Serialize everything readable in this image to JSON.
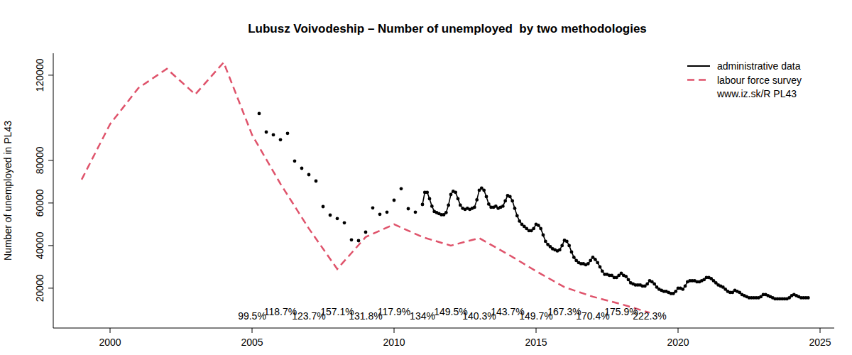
{
  "chart_data": {
    "type": "line",
    "title": "Lubusz Voivodeship – Number of unemployed  by two methodologies",
    "y_label": "Number of unemployed in PL43",
    "source": "www.iz.sk/R PL43",
    "legend": "top-right",
    "xlim": [
      1998,
      2025.5
    ],
    "xticks": [
      2000,
      2005,
      2010,
      2015,
      2020,
      2025
    ],
    "ylim": [
      1300,
      130300
    ],
    "yticks": [
      20000,
      40000,
      60000,
      80000,
      120000
    ],
    "grid": false,
    "series": [
      {
        "name": "administrative data",
        "color": "#000000",
        "type": "line",
        "marker": "circle",
        "line_style": "solid",
        "x": [
          2005.25,
          2005.333,
          2005.5,
          2005.583,
          2005.75,
          2005.833,
          2006.0,
          2006.083,
          2006.25,
          2006.333,
          2006.5,
          2006.583,
          2006.75,
          2006.833,
          2007.0,
          2007.083,
          2007.25,
          2007.333,
          2007.5,
          2007.583,
          2007.75,
          2007.833,
          2008.0,
          2008.083,
          2008.25,
          2008.333,
          2008.5,
          2008.583,
          2008.75,
          2008.833,
          2009.0,
          2009.083,
          2009.25,
          2009.333,
          2009.5,
          2009.583,
          2009.75,
          2009.833,
          2010.0,
          2010.083,
          2010.25,
          2010.333,
          2010.5,
          2010.583,
          2010.75,
          2010.833,
          2011.0,
          2011.083,
          2011.167,
          2011.25,
          2011.333,
          2011.417,
          2011.5,
          2011.583,
          2011.667,
          2011.75,
          2011.833,
          2011.917,
          2012.0,
          2012.083,
          2012.167,
          2012.25,
          2012.333,
          2012.417,
          2012.5,
          2012.583,
          2012.667,
          2012.75,
          2012.833,
          2012.917,
          2013.0,
          2013.083,
          2013.167,
          2013.25,
          2013.333,
          2013.417,
          2013.5,
          2013.583,
          2013.667,
          2013.75,
          2013.833,
          2013.917,
          2014.0,
          2014.083,
          2014.167,
          2014.25,
          2014.333,
          2014.417,
          2014.5,
          2014.583,
          2014.667,
          2014.75,
          2014.833,
          2014.917,
          2015.0,
          2015.083,
          2015.167,
          2015.25,
          2015.333,
          2015.417,
          2015.5,
          2015.583,
          2015.667,
          2015.75,
          2015.833,
          2015.917,
          2016.0,
          2016.083,
          2016.167,
          2016.25,
          2016.333,
          2016.417,
          2016.5,
          2016.583,
          2016.667,
          2016.75,
          2016.833,
          2016.917,
          2017.0,
          2017.083,
          2017.167,
          2017.25,
          2017.333,
          2017.417,
          2017.5,
          2017.583,
          2017.667,
          2017.75,
          2017.833,
          2017.917,
          2018.0,
          2018.083,
          2018.167,
          2018.25,
          2018.333,
          2018.417,
          2018.5,
          2018.583,
          2018.667,
          2018.75,
          2018.833,
          2018.917,
          2019.0,
          2019.083,
          2019.167,
          2019.25,
          2019.333,
          2019.417,
          2019.5,
          2019.583,
          2019.667,
          2019.75,
          2019.833,
          2019.917,
          2020.0,
          2020.083,
          2020.167,
          2020.25,
          2020.333,
          2020.417,
          2020.5,
          2020.583,
          2020.667,
          2020.75,
          2020.833,
          2020.917,
          2021.0,
          2021.083,
          2021.167,
          2021.25,
          2021.333,
          2021.417,
          2021.5,
          2021.583,
          2021.667,
          2021.75,
          2021.833,
          2021.917,
          2022.0,
          2022.083,
          2022.167,
          2022.25,
          2022.333,
          2022.417,
          2022.5,
          2022.583,
          2022.667,
          2022.75,
          2022.833,
          2022.917,
          2023.0,
          2023.083,
          2023.167,
          2023.25,
          2023.333,
          2023.417,
          2023.5,
          2023.583,
          2023.667,
          2023.75,
          2023.833,
          2023.917,
          2024.0,
          2024.083,
          2024.167,
          2024.25,
          2024.333,
          2024.417,
          2024.5,
          2024.583
        ],
        "values": [
          102000,
          null,
          93300,
          null,
          92000,
          null,
          89700,
          null,
          92700,
          null,
          79700,
          null,
          76300,
          null,
          73300,
          null,
          70300,
          null,
          58300,
          null,
          54300,
          null,
          52700,
          null,
          50700,
          null,
          42700,
          null,
          42300,
          null,
          46300,
          null,
          57700,
          null,
          54700,
          null,
          55700,
          null,
          61300,
          null,
          66700,
          null,
          57300,
          null,
          55700,
          null,
          59300,
          65000,
          65000,
          62000,
          58500,
          56000,
          55500,
          55000,
          54500,
          54500,
          55500,
          59000,
          64000,
          65500,
          65000,
          62000,
          59000,
          57500,
          57000,
          57500,
          57000,
          57500,
          58000,
          61500,
          66000,
          67000,
          66000,
          63000,
          59500,
          58000,
          58000,
          58500,
          57500,
          58000,
          58500,
          61000,
          63500,
          63000,
          61000,
          57500,
          54000,
          51500,
          50000,
          49000,
          48000,
          47000,
          47000,
          48000,
          50000,
          49500,
          48000,
          45000,
          42000,
          40500,
          39500,
          38500,
          38000,
          37500,
          38000,
          40000,
          42500,
          42000,
          40000,
          37000,
          34500,
          33000,
          32000,
          31500,
          31500,
          31000,
          31500,
          33000,
          34500,
          33500,
          32000,
          30000,
          28000,
          26500,
          26500,
          26000,
          26000,
          25000,
          25000,
          26000,
          27000,
          26000,
          25500,
          24000,
          22500,
          22000,
          21500,
          21500,
          21500,
          21000,
          21000,
          22000,
          23500,
          23000,
          22000,
          20500,
          19500,
          19000,
          18500,
          18500,
          18000,
          17500,
          17500,
          18500,
          20000,
          20000,
          19500,
          21000,
          23000,
          23500,
          23500,
          23500,
          23000,
          23000,
          23500,
          24000,
          25000,
          25000,
          24500,
          23500,
          22500,
          21500,
          21000,
          20500,
          19500,
          18500,
          18000,
          18000,
          19000,
          18500,
          18000,
          17000,
          16500,
          16000,
          15500,
          15500,
          15500,
          15500,
          15500,
          16000,
          17000,
          17000,
          16500,
          16000,
          15500,
          15000,
          15000,
          15000,
          15000,
          15000,
          15000,
          15500,
          16500,
          17000,
          16500,
          16000,
          15500,
          15500,
          15500,
          15500
        ]
      },
      {
        "name": "labour force survey",
        "color": "#DF536B",
        "type": "line",
        "marker": "none",
        "line_style": "dashed",
        "x": [
          1999,
          2000,
          2001,
          2002,
          2003,
          2004,
          2005,
          2006,
          2007,
          2008,
          2009,
          2010,
          2011,
          2012,
          2013,
          2014,
          2015,
          2016,
          2017,
          2018,
          2019
        ],
        "values": [
          71000,
          97000,
          114000,
          123000,
          111000,
          126000,
          92000,
          69000,
          48000,
          29000,
          44000,
          50000,
          44000,
          40000,
          43500,
          36000,
          28000,
          20500,
          16000,
          12500,
          8500
        ]
      }
    ],
    "annotations": [
      {
        "x": 2005,
        "y": 5300,
        "text": "99.5%"
      },
      {
        "x": 2006,
        "y": 7300,
        "text": "118.7%"
      },
      {
        "x": 2007,
        "y": 5300,
        "text": "123.7%"
      },
      {
        "x": 2008,
        "y": 7300,
        "text": "157.1%"
      },
      {
        "x": 2009,
        "y": 5300,
        "text": "131.8%"
      },
      {
        "x": 2010,
        "y": 7300,
        "text": "117.9%"
      },
      {
        "x": 2011,
        "y": 5300,
        "text": "134%"
      },
      {
        "x": 2012,
        "y": 7300,
        "text": "149.5%"
      },
      {
        "x": 2013,
        "y": 5300,
        "text": "140.3%"
      },
      {
        "x": 2014,
        "y": 7300,
        "text": "143.7%"
      },
      {
        "x": 2015,
        "y": 5300,
        "text": "149.7%"
      },
      {
        "x": 2016,
        "y": 7300,
        "text": "167.3%"
      },
      {
        "x": 2017,
        "y": 5300,
        "text": "170.4%"
      },
      {
        "x": 2018,
        "y": 7300,
        "text": "175.9%"
      },
      {
        "x": 2019,
        "y": 5300,
        "text": "222.3%"
      }
    ]
  }
}
